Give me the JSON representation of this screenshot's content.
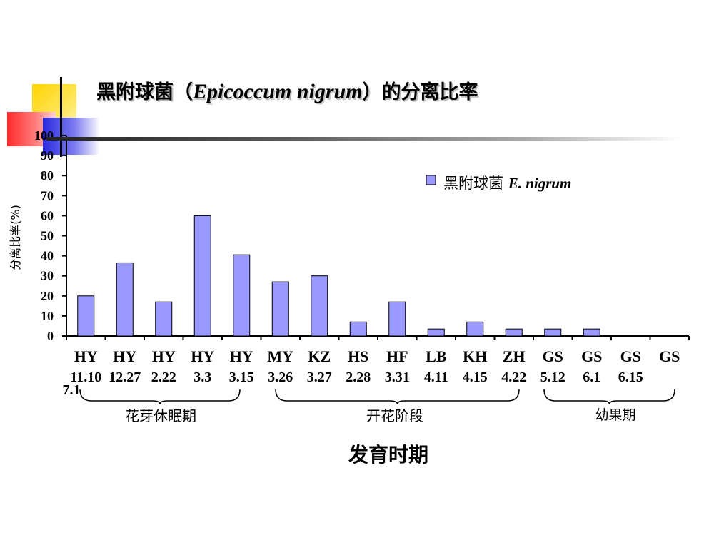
{
  "title": {
    "zh_prefix": "黑附球菌（",
    "latin": "Epicoccum nigrum",
    "zh_suffix": "）的分离比率"
  },
  "legend": {
    "zh": "黑附球菌 ",
    "latin": "E. nigrum"
  },
  "colors": {
    "bar": "#9999ff",
    "bar_stroke": "#000000"
  },
  "chart_data": {
    "type": "bar",
    "categories": [
      "HY",
      "HY",
      "HY",
      "HY",
      "HY",
      "MY",
      "KZ",
      "HS",
      "HF",
      "LB",
      "KH",
      "ZH",
      "GS",
      "GS",
      "GS",
      "GS"
    ],
    "dates": [
      "11.10",
      "12.27",
      "2.22",
      "3.3",
      "3.15",
      "3.26",
      "3.27",
      "2.28",
      "3.31",
      "4.11",
      "4.15",
      "4.22",
      "5.12",
      "6.1",
      "6.15",
      "7.1"
    ],
    "values": [
      20,
      36.5,
      17,
      60,
      40.5,
      27,
      30,
      7,
      17,
      3.5,
      7,
      3.5,
      3.5,
      3.5,
      0,
      0
    ],
    "ylabel": "分离比率(%)",
    "xlabel": "发育时期",
    "ylim": [
      0,
      100
    ],
    "yticks": [
      0,
      10,
      20,
      30,
      40,
      50,
      60,
      70,
      80,
      90,
      100
    ],
    "legend_position": "top-right",
    "grid": false,
    "groups": [
      {
        "label": "花芽休眠期"
      },
      {
        "label": "开花阶段"
      },
      {
        "label": "幼果期"
      }
    ]
  }
}
